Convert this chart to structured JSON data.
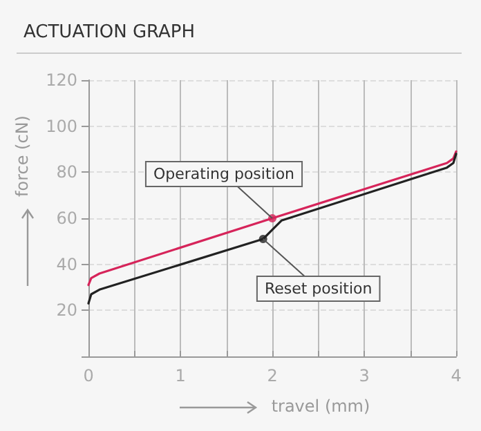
{
  "chart_data": {
    "type": "line",
    "title": "ACTUATION GRAPH",
    "xlabel": "travel (mm)",
    "ylabel": "force (cN)",
    "xlim": [
      0,
      4
    ],
    "xticks": [
      0,
      {
        "value": 0.5,
        "label": null
      },
      1,
      {
        "value": 1.5,
        "label": null
      },
      2,
      {
        "value": 2.5,
        "label": null
      },
      3,
      {
        "value": 3.5,
        "label": null
      },
      4
    ],
    "ylim": [
      0,
      120
    ],
    "yticks": [
      {
        "value": 0,
        "label": null
      },
      20,
      40,
      60,
      80,
      100,
      120
    ],
    "grid": true,
    "marker": "none",
    "line_style": "solid",
    "series": [
      {
        "color": "#d6245a",
        "x": [
          0,
          0.03,
          0.12,
          2,
          3.9,
          3.97,
          4
        ],
        "values": [
          31,
          34,
          36,
          60,
          84,
          86,
          89
        ]
      },
      {
        "color": "#222222",
        "x": [
          0,
          0.03,
          0.12,
          1.9,
          2,
          2.1,
          3.9,
          3.97,
          4
        ],
        "values": [
          23,
          27,
          29,
          51,
          55,
          59,
          82,
          84,
          88
        ]
      },
      {
        "type": "scatter",
        "marker": "circle",
        "color": "#d6245a",
        "x": [
          2
        ],
        "values": [
          60
        ]
      },
      {
        "type": "scatter",
        "marker": "circle",
        "color": "#222222",
        "x": [
          1.9
        ],
        "values": [
          51
        ]
      }
    ],
    "annotations": [
      {
        "text": "Operating position",
        "x": 2,
        "y": 60
      },
      {
        "text": "Reset position",
        "x": 1.9,
        "y": 51
      }
    ]
  }
}
